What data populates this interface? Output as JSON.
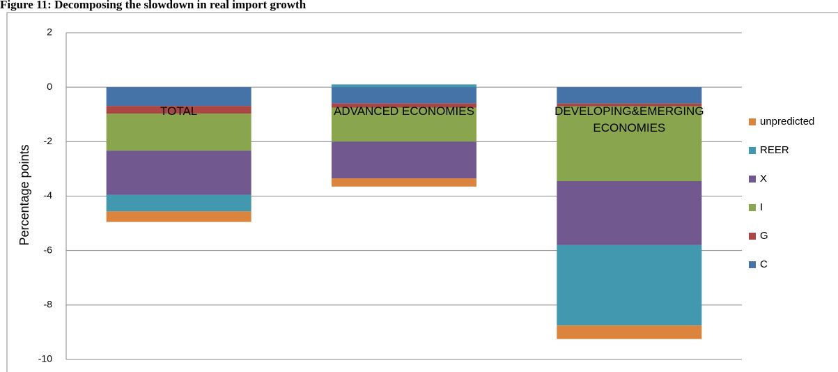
{
  "chart_data": {
    "type": "stacked_bar",
    "title": "Figure 11: Decomposing the slowdown in real import growth",
    "y_label": "Percentage points",
    "categories": [
      "TOTAL",
      "ADVANCED ECONOMIES",
      "DEVELOPING&EMERGING ECONOMIES"
    ],
    "series": [
      {
        "name": "C",
        "color": "#4572a7",
        "values": [
          -0.69,
          -0.6,
          -0.6
        ]
      },
      {
        "name": "G",
        "color": "#aa4643",
        "values": [
          -0.28,
          -0.15,
          -0.1
        ]
      },
      {
        "name": "I",
        "color": "#89a54e",
        "values": [
          -1.36,
          -1.25,
          -2.75
        ]
      },
      {
        "name": "X",
        "color": "#71588f",
        "values": [
          -1.62,
          -1.35,
          -2.35
        ]
      },
      {
        "name": "REER",
        "color": "#4198af",
        "values": [
          -0.61,
          0.1,
          -2.95
        ]
      },
      {
        "name": "unpredicted",
        "color": "#db843d",
        "values": [
          -0.39,
          -0.3,
          -0.5
        ]
      }
    ],
    "ylim": [
      -10,
      2
    ],
    "yticks": [
      -10,
      -8,
      -6,
      -4,
      -2,
      0,
      2
    ],
    "grid": true,
    "legend": "right"
  }
}
